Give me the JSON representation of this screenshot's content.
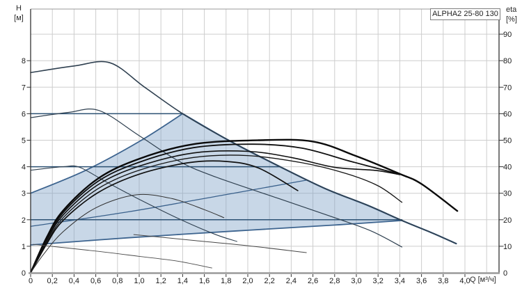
{
  "title_box": {
    "label": "ALPHA2 25-80 130"
  },
  "axes": {
    "left": {
      "title_line1": "H",
      "title_line2": "[м]"
    },
    "right": {
      "title_line1": "eta",
      "title_line2": "[%]"
    },
    "bottom": {
      "unit_label": "Q [м³/ч]"
    }
  },
  "colors": {
    "grid": "#cdcdcd",
    "frame_light": "#999999",
    "frame_dark": "#333333",
    "axis_line": "#9a9a9a",
    "tick": "#333333",
    "speed_curve": "#2f4050",
    "control_curve": "#2c5173",
    "region_edge": "#3d648f",
    "region_fill": "rgba(125,160,198,0.42)",
    "eta_curve": "#0a0a0a"
  },
  "chart_data": {
    "type": "line",
    "title": "ALPHA2 25-80 130",
    "xlabel": "Q [м³/ч]",
    "ylabel_left": "H [м]",
    "ylabel_right": "eta [%]",
    "xlim": [
      0,
      4.31
    ],
    "ylim_h": [
      0,
      9.95
    ],
    "ylim_eta": [
      0,
      99.5
    ],
    "grid": true,
    "x_ticks": {
      "values": [
        0,
        0.2,
        0.4,
        0.6,
        0.8,
        1.0,
        1.2,
        1.4,
        1.6,
        1.8,
        2.0,
        2.2,
        2.4,
        2.6,
        2.8,
        3.0,
        3.2,
        3.4,
        3.6,
        3.8,
        4.0
      ],
      "labels": [
        "0",
        "0,2",
        "0,4",
        "0,6",
        "0,8",
        "1,0",
        "1,2",
        "1,4",
        "1,6",
        "1,8",
        "2,0",
        "2,2",
        "2,4",
        "2,6",
        "2,8",
        "3,0",
        "3,2",
        "3,4",
        "3,6",
        "3,8",
        "4,0"
      ]
    },
    "h_ticks": {
      "values": [
        0,
        1,
        2,
        3,
        4,
        5,
        6,
        7,
        8
      ],
      "labels": [
        "0",
        "1",
        "2",
        "3",
        "4",
        "5",
        "6",
        "7",
        "8"
      ]
    },
    "eta_ticks": {
      "values": [
        0,
        10,
        20,
        30,
        40,
        50,
        60,
        70,
        80,
        90
      ],
      "labels": [
        "0",
        "10",
        "20",
        "30",
        "40",
        "50",
        "60",
        "70",
        "80",
        "90"
      ]
    },
    "grid_x_values": [
      0.2,
      0.4,
      0.6,
      0.8,
      1.0,
      1.2,
      1.4,
      1.6,
      1.8,
      2.0,
      2.2,
      2.4,
      2.6,
      2.8,
      3.0,
      3.2,
      3.4,
      3.6,
      3.8,
      4.0,
      4.2
    ],
    "grid_h_values": [
      1,
      2,
      3,
      4,
      5,
      6,
      7,
      8,
      9
    ],
    "autoadapt_region": {
      "name": "autoadapt-setting-range",
      "fill": "rgba(125,160,198,0.42)",
      "points": [
        [
          0,
          1.05
        ],
        [
          0.9,
          1.32
        ],
        [
          1.9,
          1.58
        ],
        [
          2.8,
          1.8
        ],
        [
          3.42,
          1.97
        ],
        [
          3.1,
          2.55
        ],
        [
          2.7,
          3.2
        ],
        [
          2.2,
          4.2
        ],
        [
          1.8,
          5.05
        ],
        [
          1.4,
          6.0
        ],
        [
          1.0,
          4.95
        ],
        [
          0.5,
          3.85
        ],
        [
          0,
          3.0
        ]
      ]
    },
    "series": [
      {
        "name": "region-edge-max",
        "axis": "h",
        "color": "#3d648f",
        "width": 2.2,
        "points": [
          [
            1.4,
            6.0
          ],
          [
            1.8,
            5.05
          ],
          [
            2.2,
            4.2
          ],
          [
            2.7,
            3.2
          ],
          [
            3.1,
            2.55
          ],
          [
            3.42,
            1.97
          ],
          [
            3.7,
            1.5
          ],
          [
            3.92,
            1.1
          ]
        ]
      },
      {
        "name": "pp1-curve",
        "axis": "h",
        "color": "#3d648f",
        "width": 1.8,
        "points": [
          [
            0,
            1.05
          ],
          [
            0.9,
            1.32
          ],
          [
            1.9,
            1.58
          ],
          [
            2.8,
            1.8
          ],
          [
            3.42,
            1.97
          ]
        ]
      },
      {
        "name": "pp2-curve",
        "axis": "h",
        "color": "#3a618c",
        "width": 1.3,
        "points": [
          [
            0,
            1.75
          ],
          [
            0.9,
            2.3
          ],
          [
            1.8,
            2.95
          ],
          [
            2.55,
            3.5
          ]
        ]
      },
      {
        "name": "pp3-curve",
        "axis": "h",
        "color": "#3d648f",
        "width": 1.8,
        "points": [
          [
            0,
            3.0
          ],
          [
            0.5,
            3.85
          ],
          [
            1.0,
            4.95
          ],
          [
            1.4,
            6.0
          ]
        ]
      },
      {
        "name": "cp1-curve",
        "axis": "h",
        "color": "#2c5173",
        "width": 1.5,
        "points": [
          [
            0,
            2.0
          ],
          [
            3.42,
            2.0
          ]
        ]
      },
      {
        "name": "cp2-curve",
        "axis": "h",
        "color": "#2c5173",
        "width": 1.5,
        "points": [
          [
            0,
            4.0
          ],
          [
            2.3,
            4.0
          ]
        ]
      },
      {
        "name": "cp3-curve",
        "axis": "h",
        "color": "#2c5173",
        "width": 1.5,
        "points": [
          [
            0,
            6.0
          ],
          [
            1.4,
            6.0
          ]
        ]
      },
      {
        "name": "speed-iii-max-curve",
        "axis": "h",
        "color": "#2f4050",
        "width": 1.6,
        "points": [
          [
            0,
            7.55
          ],
          [
            0.4,
            7.8
          ],
          [
            0.73,
            7.92
          ],
          [
            1.05,
            7.0
          ],
          [
            1.4,
            6.0
          ],
          [
            1.8,
            5.05
          ],
          [
            2.2,
            4.2
          ],
          [
            2.7,
            3.2
          ],
          [
            3.1,
            2.55
          ],
          [
            3.42,
            1.97
          ],
          [
            3.7,
            1.5
          ],
          [
            3.92,
            1.1
          ]
        ]
      },
      {
        "name": "speed-ii-curve",
        "axis": "h",
        "color": "#2f4050",
        "width": 1.2,
        "points": [
          [
            0,
            5.85
          ],
          [
            0.35,
            6.05
          ],
          [
            0.63,
            6.12
          ],
          [
            1.0,
            5.17
          ],
          [
            1.37,
            4.2
          ],
          [
            1.7,
            3.62
          ],
          [
            2.3,
            2.78
          ],
          [
            2.8,
            2.08
          ],
          [
            3.14,
            1.57
          ],
          [
            3.42,
            0.97
          ]
        ]
      },
      {
        "name": "speed-i-curve",
        "axis": "h",
        "color": "#2f4050",
        "width": 1.1,
        "points": [
          [
            0,
            3.87
          ],
          [
            0.3,
            4.0
          ],
          [
            0.45,
            3.98
          ],
          [
            0.7,
            3.42
          ],
          [
            1.02,
            2.73
          ],
          [
            1.4,
            1.97
          ],
          [
            1.7,
            1.45
          ],
          [
            1.9,
            1.18
          ]
        ]
      },
      {
        "name": "eta-curve-max",
        "axis": "eta",
        "color": "#0a0a0a",
        "width": 2.4,
        "points": [
          [
            0,
            0
          ],
          [
            0.15,
            13.5
          ],
          [
            0.3,
            23.5
          ],
          [
            0.62,
            35.5
          ],
          [
            1.0,
            43
          ],
          [
            1.5,
            48.5
          ],
          [
            2.1,
            50
          ],
          [
            2.6,
            49.5
          ],
          [
            3.0,
            44
          ],
          [
            3.4,
            37.3
          ],
          [
            3.6,
            33.5
          ],
          [
            3.93,
            23.3
          ]
        ]
      },
      {
        "name": "eta-curve-2",
        "axis": "eta",
        "color": "#0f0f0f",
        "width": 1.8,
        "points": [
          [
            0,
            0
          ],
          [
            0.15,
            12.8
          ],
          [
            0.3,
            22.7
          ],
          [
            0.62,
            34.5
          ],
          [
            1.0,
            41.7
          ],
          [
            1.5,
            47.2
          ],
          [
            2.05,
            48.5
          ],
          [
            2.5,
            47
          ],
          [
            2.95,
            42
          ],
          [
            3.4,
            37.2
          ]
        ]
      },
      {
        "name": "eta-curve-3",
        "axis": "eta",
        "color": "#101010",
        "width": 1.6,
        "points": [
          [
            0,
            0
          ],
          [
            0.15,
            12.2
          ],
          [
            0.3,
            21.8
          ],
          [
            0.62,
            33.2
          ],
          [
            1.0,
            40.2
          ],
          [
            1.5,
            45.2
          ],
          [
            2.0,
            45.8
          ],
          [
            2.4,
            43.5
          ],
          [
            2.8,
            39.8
          ],
          [
            3.18,
            38.6
          ],
          [
            3.4,
            37.0
          ]
        ]
      },
      {
        "name": "eta-curve-4",
        "axis": "eta",
        "color": "#141414",
        "width": 1.3,
        "points": [
          [
            0,
            0
          ],
          [
            0.15,
            11.5
          ],
          [
            0.3,
            20.8
          ],
          [
            0.62,
            31.7
          ],
          [
            1.0,
            38.7
          ],
          [
            1.5,
            43.5
          ],
          [
            2.0,
            44.2
          ],
          [
            2.5,
            41.5
          ],
          [
            2.9,
            37.5
          ],
          [
            3.2,
            32.8
          ],
          [
            3.42,
            26.6
          ]
        ]
      },
      {
        "name": "eta-curve-ii",
        "axis": "eta",
        "color": "#101010",
        "width": 1.7,
        "points": [
          [
            0,
            0
          ],
          [
            0.15,
            11
          ],
          [
            0.3,
            19.8
          ],
          [
            0.62,
            30.2
          ],
          [
            1.0,
            37.2
          ],
          [
            1.45,
            41.5
          ],
          [
            1.8,
            42
          ],
          [
            2.1,
            39.5
          ],
          [
            2.46,
            31
          ]
        ]
      },
      {
        "name": "eta-curve-i",
        "axis": "eta",
        "color": "#303030",
        "width": 1.0,
        "points": [
          [
            0,
            0
          ],
          [
            0.12,
            7
          ],
          [
            0.3,
            15.5
          ],
          [
            0.6,
            24.5
          ],
          [
            0.97,
            29.4
          ],
          [
            1.3,
            28
          ],
          [
            1.6,
            23.8
          ],
          [
            1.78,
            20.8
          ]
        ]
      },
      {
        "name": "minor-curve-a",
        "axis": "eta",
        "color": "#474747",
        "width": 1.0,
        "points": [
          [
            0.95,
            14.4
          ],
          [
            1.5,
            12.2
          ],
          [
            2.0,
            10.2
          ],
          [
            2.54,
            7.6
          ]
        ]
      },
      {
        "name": "minor-curve-b",
        "axis": "eta",
        "color": "#4a4a4a",
        "width": 0.9,
        "points": [
          [
            0.02,
            10.7
          ],
          [
            0.6,
            8.2
          ],
          [
            1.0,
            6.2
          ],
          [
            1.35,
            4.4
          ],
          [
            1.67,
            1.8
          ]
        ]
      }
    ]
  }
}
